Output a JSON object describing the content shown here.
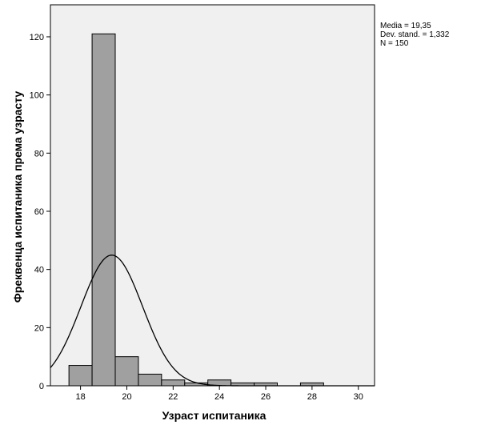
{
  "chart_data": {
    "type": "bar",
    "subtype": "histogram",
    "xlabel": "Узраст испитаника",
    "ylabel": "Фреквенца испитаника према узрасту",
    "xlim": [
      16.7,
      30.7
    ],
    "ylim": [
      0,
      131
    ],
    "x_ticks": [
      18,
      20,
      22,
      24,
      26,
      28,
      30
    ],
    "y_ticks": [
      0,
      20,
      40,
      60,
      80,
      100,
      120
    ],
    "bin_width": 1,
    "bins": [
      {
        "start": 17.5,
        "end": 18.5,
        "value": 7
      },
      {
        "start": 18.5,
        "end": 19.5,
        "value": 121
      },
      {
        "start": 19.5,
        "end": 20.5,
        "value": 10
      },
      {
        "start": 20.5,
        "end": 21.5,
        "value": 4
      },
      {
        "start": 21.5,
        "end": 22.5,
        "value": 2
      },
      {
        "start": 22.5,
        "end": 23.5,
        "value": 1
      },
      {
        "start": 23.5,
        "end": 24.5,
        "value": 2
      },
      {
        "start": 24.5,
        "end": 25.5,
        "value": 1
      },
      {
        "start": 25.5,
        "end": 26.5,
        "value": 1
      },
      {
        "start": 26.5,
        "end": 27.5,
        "value": 0
      },
      {
        "start": 27.5,
        "end": 28.5,
        "value": 1
      },
      {
        "start": 28.5,
        "end": 29.5,
        "value": 0
      },
      {
        "start": 29.5,
        "end": 30.5,
        "value": 0
      }
    ],
    "normal_curve": {
      "mean": 19.35,
      "std": 1.332,
      "n": 150
    },
    "stats_text": [
      "Media = 19,35",
      "Dev. stand. = 1,332",
      "N = 150"
    ],
    "grid": false,
    "colors": {
      "plot_background": "#f0f0f0",
      "bar_fill": "#a0a0a0",
      "bar_stroke": "#000000",
      "curve": "#000000"
    }
  }
}
